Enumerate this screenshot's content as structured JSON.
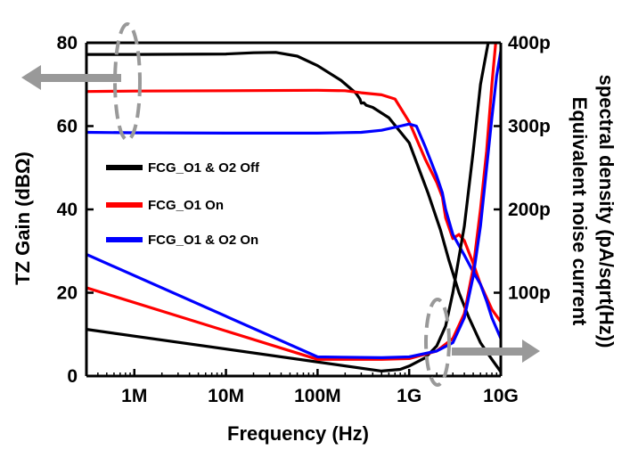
{
  "chart_data": {
    "type": "line",
    "xlabel": "Frequency (Hz)",
    "ylabel_left": "TZ Gain (dBΩ)",
    "ylabel_right": "Equivalent noise current spectral density (pA/sqrt(Hz))",
    "ylabel_right_lines": [
      "Equivalent noise current",
      "spectral density (pA/sqrt(Hz))"
    ],
    "x_scale": "log",
    "xlim": [
      300000,
      10000000000
    ],
    "ylim_left": [
      0,
      80
    ],
    "ylim_right": [
      0,
      400
    ],
    "x_ticks": [
      1000000,
      10000000,
      100000000,
      1000000000,
      10000000000
    ],
    "x_tick_labels": [
      "1M",
      "10M",
      "100M",
      "1G",
      "10G"
    ],
    "y_left_ticks": [
      0,
      20,
      40,
      60,
      80
    ],
    "y_left_tick_labels": [
      "0",
      "20",
      "40",
      "60",
      "80"
    ],
    "y_right_ticks": [
      100,
      200,
      300,
      400
    ],
    "y_right_tick_labels": [
      "100p",
      "200p",
      "300p",
      "400p"
    ],
    "legend": {
      "placement": "center-left",
      "entries": [
        "FCG_O1 & O2 Off",
        "FCG_O1 On",
        "FCG_O1 & O2 On"
      ]
    },
    "colors": {
      "off": "#000000",
      "o1_on": "#ff0000",
      "o1o2_on": "#0000ff",
      "annotation": "#999999"
    },
    "series": [
      {
        "name": "FCG_O1 & O2 Off",
        "kind": "gain",
        "axis": "left",
        "color": "#000000",
        "points": [
          [
            300000,
            77.2
          ],
          [
            1000000,
            77.2
          ],
          [
            10000000,
            77.3
          ],
          [
            20000000,
            77.6
          ],
          [
            35000000,
            77.7
          ],
          [
            60000000,
            76.8
          ],
          [
            100000000,
            74.5
          ],
          [
            180000000,
            71
          ],
          [
            260000000,
            68
          ],
          [
            270000000,
            67.5
          ],
          [
            290000000,
            66.5
          ],
          [
            300000000,
            65.5
          ],
          [
            320000000,
            65.6
          ],
          [
            340000000,
            65
          ],
          [
            400000000,
            64.5
          ],
          [
            600000000,
            62
          ],
          [
            1000000000,
            56
          ],
          [
            1600000000,
            44
          ],
          [
            2200000000,
            35
          ],
          [
            2700000000,
            28
          ],
          [
            3500000000,
            20
          ],
          [
            4500000000,
            14
          ],
          [
            6000000000,
            8
          ],
          [
            8000000000,
            4
          ],
          [
            10000000000,
            1
          ]
        ]
      },
      {
        "name": "FCG_O1 On",
        "kind": "gain",
        "axis": "left",
        "color": "#ff0000",
        "points": [
          [
            300000,
            68.3
          ],
          [
            1000000,
            68.4
          ],
          [
            10000000,
            68.5
          ],
          [
            100000000,
            68.6
          ],
          [
            200000000,
            68.5
          ],
          [
            300000000,
            68
          ],
          [
            500000000,
            67.5
          ],
          [
            700000000,
            66.5
          ],
          [
            1000000000,
            61
          ],
          [
            1500000000,
            52
          ],
          [
            2000000000,
            46.5
          ],
          [
            2300000000,
            43
          ],
          [
            2500000000,
            38
          ],
          [
            3000000000,
            33
          ],
          [
            3500000000,
            34
          ],
          [
            4000000000,
            32.5
          ],
          [
            5000000000,
            27
          ],
          [
            6000000000,
            22
          ],
          [
            8000000000,
            16
          ],
          [
            10000000000,
            13
          ]
        ]
      },
      {
        "name": "FCG_O1 & O2 On",
        "kind": "gain",
        "axis": "left",
        "color": "#0000ff",
        "points": [
          [
            300000,
            58.5
          ],
          [
            1000000,
            58.4
          ],
          [
            10000000,
            58.3
          ],
          [
            100000000,
            58.3
          ],
          [
            300000000,
            58.5
          ],
          [
            500000000,
            59
          ],
          [
            800000000,
            60
          ],
          [
            1000000000,
            60.5
          ],
          [
            1200000000,
            60
          ],
          [
            1500000000,
            55
          ],
          [
            2000000000,
            48
          ],
          [
            2300000000,
            44
          ],
          [
            2500000000,
            40
          ],
          [
            3000000000,
            34
          ],
          [
            4000000000,
            29
          ],
          [
            5000000000,
            25
          ],
          [
            6000000000,
            22
          ],
          [
            7000000000,
            18
          ],
          [
            8000000000,
            14
          ],
          [
            10000000000,
            9
          ]
        ]
      },
      {
        "name": "FCG_O1 & O2 Off",
        "kind": "noise",
        "axis": "right",
        "color": "#000000",
        "points": [
          [
            300000,
            56
          ],
          [
            500000000,
            6
          ],
          [
            800000000,
            8
          ],
          [
            1000000000,
            12
          ],
          [
            1500000000,
            22
          ],
          [
            2000000000,
            36
          ],
          [
            2500000000,
            60
          ],
          [
            3000000000,
            100
          ],
          [
            4000000000,
            180
          ],
          [
            5000000000,
            270
          ],
          [
            6000000000,
            350
          ],
          [
            7000000000,
            390
          ],
          [
            7300000000,
            400
          ]
        ]
      },
      {
        "name": "FCG_O1 On",
        "kind": "noise",
        "axis": "right",
        "color": "#ff0000",
        "points": [
          [
            300000,
            106
          ],
          [
            100000000,
            20
          ],
          [
            500000000,
            20
          ],
          [
            1000000000,
            21
          ],
          [
            2000000000,
            30
          ],
          [
            3000000000,
            45
          ],
          [
            4000000000,
            75
          ],
          [
            5000000000,
            130
          ],
          [
            6000000000,
            200
          ],
          [
            7000000000,
            270
          ],
          [
            8000000000,
            350
          ],
          [
            8800000000,
            400
          ]
        ]
      },
      {
        "name": "FCG_O1 & O2 On",
        "kind": "noise",
        "axis": "right",
        "color": "#0000ff",
        "points": [
          [
            300000,
            146
          ],
          [
            100000000,
            23
          ],
          [
            500000000,
            22
          ],
          [
            1000000000,
            23
          ],
          [
            2000000000,
            30
          ],
          [
            3000000000,
            40
          ],
          [
            4000000000,
            70
          ],
          [
            5000000000,
            120
          ],
          [
            6000000000,
            180
          ],
          [
            7000000000,
            250
          ],
          [
            8000000000,
            310
          ],
          [
            9000000000,
            360
          ],
          [
            10000000000,
            390
          ]
        ]
      }
    ]
  }
}
